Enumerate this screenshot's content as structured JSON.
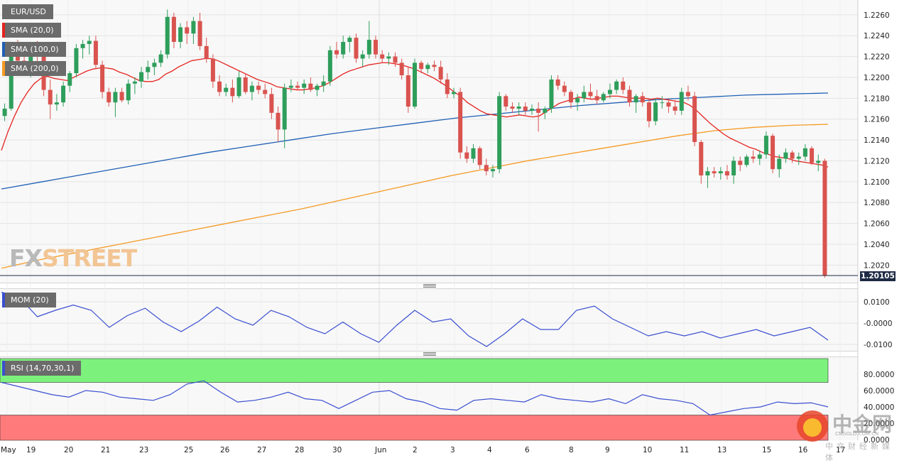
{
  "symbol": "EUR/USD",
  "last_price": "1.20105",
  "logo": {
    "fx": "FX",
    "street": "STREET"
  },
  "watermark": {
    "cn": "中金网",
    "domain": "CNGOLD.COM.CN",
    "sub": "中文财经新媒体"
  },
  "colors": {
    "up": "#2e9e5b",
    "down": "#d9534f",
    "sma20": "#e5231f",
    "sma100": "#1f5fb5",
    "sma200": "#f59a23",
    "mom": "#3a4fd1",
    "rsi": "#3a4fd1",
    "rsi_overbought": "#7cf27c",
    "rsi_oversold": "#ff7b7b"
  },
  "indicator_tags": {
    "sma20": "SMA (20,0)",
    "sma100": "SMA (100,0)",
    "sma200": "SMA (200,0)",
    "mom": "MOM (20)",
    "rsi": "RSI (14,70,30,1)"
  },
  "price_axis": [
    "1.2260",
    "1.2240",
    "1.2220",
    "1.2200",
    "1.2180",
    "1.2160",
    "1.2140",
    "1.2120",
    "1.2100",
    "1.2080",
    "1.2060",
    "1.2040",
    "1.2020"
  ],
  "mom_axis": [
    "0.0100",
    "-0.0000",
    "-0.0100"
  ],
  "rsi_axis": [
    "80.0000",
    "60.0000",
    "40.0000",
    "20.0000",
    "0.0000"
  ],
  "date_axis": [
    "May",
    "19",
    "20",
    "21",
    "23",
    "25",
    "26",
    "27",
    "28",
    "30",
    "Jun",
    "2",
    "3",
    "4",
    "6",
    "8",
    "9",
    "10",
    "11",
    "13",
    "15",
    "16",
    "17"
  ],
  "chart_data": {
    "type": "candlestick",
    "timeframe": "4h",
    "ylim": [
      1.201,
      1.2266
    ],
    "candles": [
      [
        1.2163,
        1.2175,
        1.2158,
        1.217
      ],
      [
        1.217,
        1.2228,
        1.2168,
        1.2223
      ],
      [
        1.2223,
        1.2236,
        1.2208,
        1.2216
      ],
      [
        1.2216,
        1.2226,
        1.2204,
        1.221
      ],
      [
        1.221,
        1.223,
        1.22,
        1.2225
      ],
      [
        1.2225,
        1.2235,
        1.2215,
        1.222
      ],
      [
        1.222,
        1.2225,
        1.2182,
        1.2188
      ],
      [
        1.2188,
        1.2198,
        1.216,
        1.2174
      ],
      [
        1.2174,
        1.2184,
        1.2168,
        1.2176
      ],
      [
        1.2176,
        1.2196,
        1.2172,
        1.2192
      ],
      [
        1.2192,
        1.2206,
        1.2186,
        1.2204
      ],
      [
        1.2204,
        1.2232,
        1.22,
        1.2228
      ],
      [
        1.2228,
        1.2236,
        1.2218,
        1.2232
      ],
      [
        1.2232,
        1.224,
        1.2222,
        1.2235
      ],
      [
        1.2235,
        1.224,
        1.2208,
        1.2212
      ],
      [
        1.2212,
        1.2216,
        1.218,
        1.2186
      ],
      [
        1.2186,
        1.219,
        1.2172,
        1.2176
      ],
      [
        1.2176,
        1.219,
        1.2162,
        1.2186
      ],
      [
        1.2186,
        1.219,
        1.2176,
        1.2178
      ],
      [
        1.2178,
        1.2198,
        1.2174,
        1.2194
      ],
      [
        1.2194,
        1.22,
        1.2184,
        1.2196
      ],
      [
        1.2196,
        1.221,
        1.219,
        1.2205
      ],
      [
        1.2205,
        1.2216,
        1.2198,
        1.221
      ],
      [
        1.221,
        1.2218,
        1.2202,
        1.2214
      ],
      [
        1.2214,
        1.2226,
        1.221,
        1.2222
      ],
      [
        1.2222,
        1.2265,
        1.2218,
        1.2258
      ],
      [
        1.2258,
        1.2262,
        1.2228,
        1.2234
      ],
      [
        1.2234,
        1.2252,
        1.2228,
        1.2248
      ],
      [
        1.2248,
        1.2254,
        1.2232,
        1.2242
      ],
      [
        1.2242,
        1.2258,
        1.2232,
        1.2254
      ],
      [
        1.2254,
        1.2262,
        1.2226,
        1.223
      ],
      [
        1.223,
        1.2238,
        1.2214,
        1.2218
      ],
      [
        1.2218,
        1.2222,
        1.219,
        1.2196
      ],
      [
        1.2196,
        1.2202,
        1.2182,
        1.2186
      ],
      [
        1.2186,
        1.2194,
        1.2182,
        1.219
      ],
      [
        1.219,
        1.2198,
        1.2176,
        1.2182
      ],
      [
        1.2182,
        1.2206,
        1.218,
        1.22
      ],
      [
        1.22,
        1.2204,
        1.2184,
        1.2186
      ],
      [
        1.2186,
        1.2196,
        1.2178,
        1.2192
      ],
      [
        1.2192,
        1.2196,
        1.2184,
        1.2188
      ],
      [
        1.2188,
        1.2194,
        1.218,
        1.2184
      ],
      [
        1.2184,
        1.219,
        1.216,
        1.2166
      ],
      [
        1.2166,
        1.2172,
        1.2138,
        1.215
      ],
      [
        1.215,
        1.2194,
        1.2132,
        1.219
      ],
      [
        1.219,
        1.2198,
        1.2186,
        1.2192
      ],
      [
        1.2192,
        1.2196,
        1.2188,
        1.219
      ],
      [
        1.219,
        1.2198,
        1.2184,
        1.2194
      ],
      [
        1.2194,
        1.22,
        1.2186,
        1.2188
      ],
      [
        1.2188,
        1.2194,
        1.2182,
        1.2192
      ],
      [
        1.2192,
        1.2202,
        1.2186,
        1.2196
      ],
      [
        1.2196,
        1.223,
        1.2192,
        1.2226
      ],
      [
        1.2226,
        1.2234,
        1.2218,
        1.2222
      ],
      [
        1.2222,
        1.224,
        1.2218,
        1.2234
      ],
      [
        1.2234,
        1.224,
        1.2224,
        1.2238
      ],
      [
        1.2238,
        1.2242,
        1.2214,
        1.2218
      ],
      [
        1.2218,
        1.2226,
        1.221,
        1.2222
      ],
      [
        1.2222,
        1.2254,
        1.2218,
        1.2236
      ],
      [
        1.2236,
        1.224,
        1.2218,
        1.2222
      ],
      [
        1.2222,
        1.2226,
        1.2214,
        1.2218
      ],
      [
        1.2218,
        1.2224,
        1.2212,
        1.222
      ],
      [
        1.222,
        1.2224,
        1.221,
        1.2214
      ],
      [
        1.2214,
        1.2218,
        1.2198,
        1.2202
      ],
      [
        1.2202,
        1.221,
        1.2166,
        1.2172
      ],
      [
        1.2172,
        1.2218,
        1.217,
        1.2214
      ],
      [
        1.2214,
        1.2216,
        1.2204,
        1.2208
      ],
      [
        1.2208,
        1.2214,
        1.2204,
        1.2212
      ],
      [
        1.2212,
        1.2216,
        1.2206,
        1.221
      ],
      [
        1.221,
        1.2216,
        1.2194,
        1.2198
      ],
      [
        1.2198,
        1.2204,
        1.218,
        1.2184
      ],
      [
        1.2184,
        1.219,
        1.218,
        1.2186
      ],
      [
        1.2186,
        1.219,
        1.2122,
        1.2128
      ],
      [
        1.2128,
        1.2134,
        1.2118,
        1.2122
      ],
      [
        1.2122,
        1.2136,
        1.2118,
        1.2132
      ],
      [
        1.2132,
        1.2134,
        1.2112,
        1.2116
      ],
      [
        1.2116,
        1.2122,
        1.2106,
        1.211
      ],
      [
        1.211,
        1.2116,
        1.2104,
        1.2112
      ],
      [
        1.2112,
        1.2186,
        1.2108,
        1.2182
      ],
      [
        1.2182,
        1.2184,
        1.2168,
        1.2172
      ],
      [
        1.2172,
        1.2176,
        1.2166,
        1.217
      ],
      [
        1.217,
        1.2176,
        1.2164,
        1.2172
      ],
      [
        1.2172,
        1.2176,
        1.2164,
        1.2168
      ],
      [
        1.2168,
        1.2174,
        1.2164,
        1.217
      ],
      [
        1.217,
        1.2176,
        1.2148,
        1.2166
      ],
      [
        1.2166,
        1.2172,
        1.216,
        1.217
      ],
      [
        1.217,
        1.2202,
        1.2166,
        1.2198
      ],
      [
        1.2198,
        1.2202,
        1.2188,
        1.2192
      ],
      [
        1.2192,
        1.2196,
        1.2182,
        1.2186
      ],
      [
        1.2186,
        1.2188,
        1.217,
        1.2176
      ],
      [
        1.2176,
        1.2184,
        1.2168,
        1.218
      ],
      [
        1.218,
        1.2192,
        1.2176,
        1.2186
      ],
      [
        1.2186,
        1.2194,
        1.218,
        1.2182
      ],
      [
        1.2182,
        1.2188,
        1.2174,
        1.2178
      ],
      [
        1.2178,
        1.2186,
        1.2176,
        1.2184
      ],
      [
        1.2184,
        1.2194,
        1.218,
        1.2188
      ],
      [
        1.2188,
        1.2198,
        1.2184,
        1.2196
      ],
      [
        1.2196,
        1.22,
        1.2184,
        1.2188
      ],
      [
        1.2188,
        1.2192,
        1.2172,
        1.2176
      ],
      [
        1.2176,
        1.2184,
        1.2166,
        1.2182
      ],
      [
        1.2182,
        1.2186,
        1.2172,
        1.2176
      ],
      [
        1.2176,
        1.218,
        1.2152,
        1.2158
      ],
      [
        1.2158,
        1.218,
        1.2154,
        1.2176
      ],
      [
        1.2176,
        1.2182,
        1.217,
        1.2176
      ],
      [
        1.2176,
        1.218,
        1.2166,
        1.2172
      ],
      [
        1.2172,
        1.2178,
        1.2164,
        1.2168
      ],
      [
        1.2168,
        1.219,
        1.2164,
        1.2186
      ],
      [
        1.2186,
        1.2192,
        1.2178,
        1.2182
      ],
      [
        1.2182,
        1.2186,
        1.2134,
        1.2138
      ],
      [
        1.2138,
        1.214,
        1.2098,
        1.2106
      ],
      [
        1.2106,
        1.2114,
        1.2094,
        1.211
      ],
      [
        1.211,
        1.2114,
        1.2104,
        1.2108
      ],
      [
        1.2108,
        1.2114,
        1.2102,
        1.211
      ],
      [
        1.211,
        1.2116,
        1.2102,
        1.2106
      ],
      [
        1.2106,
        1.2124,
        1.2098,
        1.212
      ],
      [
        1.212,
        1.2124,
        1.211,
        1.2116
      ],
      [
        1.2116,
        1.2126,
        1.2114,
        1.2124
      ],
      [
        1.2124,
        1.213,
        1.2118,
        1.2122
      ],
      [
        1.2122,
        1.213,
        1.2116,
        1.2126
      ],
      [
        1.2126,
        1.2148,
        1.2122,
        1.2144
      ],
      [
        1.2144,
        1.2146,
        1.2108,
        1.2112
      ],
      [
        1.2112,
        1.2126,
        1.2104,
        1.2122
      ],
      [
        1.2122,
        1.2132,
        1.2118,
        1.2128
      ],
      [
        1.2128,
        1.213,
        1.2118,
        1.2122
      ],
      [
        1.2122,
        1.2128,
        1.2116,
        1.2124
      ],
      [
        1.2124,
        1.2136,
        1.212,
        1.2132
      ],
      [
        1.2132,
        1.2134,
        1.2116,
        1.2118
      ],
      [
        1.2118,
        1.2126,
        1.211,
        1.212
      ],
      [
        1.212,
        1.2122,
        1.2008,
        1.201
      ]
    ],
    "sma20": [
      1.213,
      1.2148,
      1.2163,
      1.2176,
      1.2186,
      1.2194,
      1.2199,
      1.2201,
      1.2199,
      1.2198,
      1.2197,
      1.22,
      1.2203,
      1.2206,
      1.2208,
      1.2209,
      1.2209,
      1.2208,
      1.2205,
      1.2203,
      1.22,
      1.2197,
      1.2196,
      1.2196,
      1.2198,
      1.2203,
      1.2206,
      1.221,
      1.2213,
      1.2216,
      1.2217,
      1.2218,
      1.2218,
      1.2216,
      1.2213,
      1.221,
      1.2207,
      1.2204,
      1.2201,
      1.2198,
      1.2196,
      1.2194,
      1.2191,
      1.219,
      1.2189,
      1.2188,
      1.2188,
      1.2189,
      1.219,
      1.2192,
      1.2195,
      1.2199,
      1.2203,
      1.2206,
      1.2208,
      1.221,
      1.2212,
      1.2213,
      1.2214,
      1.2214,
      1.2213,
      1.2212,
      1.221,
      1.2208,
      1.2205,
      1.2202,
      1.2199,
      1.2195,
      1.2191,
      1.2186,
      1.2182,
      1.2176,
      1.2172,
      1.2168,
      1.2165,
      1.2164,
      1.2163,
      1.2162,
      1.2163,
      1.2164,
      1.2163,
      1.2162,
      1.2163,
      1.2167,
      1.2171,
      1.2175,
      1.2177,
      1.2179,
      1.2181,
      1.218,
      1.2179,
      1.218,
      1.2181,
      1.2182,
      1.2182,
      1.2181,
      1.218,
      1.218,
      1.218,
      1.2179,
      1.218,
      1.2179,
      1.2178,
      1.2177,
      1.2176,
      1.2173,
      1.2168,
      1.2162,
      1.2156,
      1.2151,
      1.2146,
      1.2142,
      1.2139,
      1.2136,
      1.2133,
      1.2131,
      1.2128,
      1.2126,
      1.2124,
      1.2123,
      1.2122,
      1.212,
      1.2119,
      1.2118,
      1.2117,
      1.2116,
      1.2114
    ],
    "sma100": [
      1.2093,
      1.21,
      1.2107,
      1.2114,
      1.2121,
      1.2128,
      1.2134,
      1.214,
      1.2146,
      1.2151,
      1.2156,
      1.2161,
      1.2165,
      1.2169,
      1.2173,
      1.2176,
      1.2179,
      1.2181,
      1.2183,
      1.2184,
      1.2185
    ],
    "sma200": [
      1.2017,
      1.2025,
      1.2032,
      1.2039,
      1.2046,
      1.2053,
      1.206,
      1.2067,
      1.2074,
      1.2082,
      1.209,
      1.2098,
      1.2106,
      1.2113,
      1.212,
      1.2126,
      1.2132,
      1.2138,
      1.2144,
      1.2149,
      1.2152,
      1.2154,
      1.2155
    ],
    "mom": [
      0.0145,
      0.012,
      0.003,
      0.006,
      0.0085,
      0.006,
      -0.002,
      0.0035,
      0.007,
      0.0005,
      -0.004,
      0.001,
      0.0075,
      0.002,
      -0.001,
      0.006,
      0.003,
      -0.002,
      -0.005,
      0.0005,
      -0.005,
      -0.009,
      -0.001,
      0.006,
      0.0005,
      0.002,
      -0.006,
      -0.011,
      -0.005,
      0.002,
      -0.003,
      -0.003,
      0.006,
      0.008,
      0.002,
      -0.002,
      -0.006,
      -0.004,
      -0.006,
      -0.004,
      -0.007,
      -0.005,
      -0.003,
      -0.006,
      -0.004,
      -0.002,
      -0.008
    ],
    "rsi": [
      70,
      65,
      60,
      55,
      52,
      60,
      58,
      52,
      50,
      48,
      55,
      68,
      72,
      58,
      46,
      48,
      52,
      58,
      50,
      48,
      38,
      48,
      58,
      60,
      50,
      46,
      38,
      36,
      48,
      50,
      48,
      46,
      55,
      50,
      48,
      46,
      50,
      44,
      55,
      50,
      48,
      44,
      30,
      34,
      38,
      40,
      46,
      44,
      45,
      40
    ],
    "rsi_levels": [
      70,
      30
    ]
  }
}
